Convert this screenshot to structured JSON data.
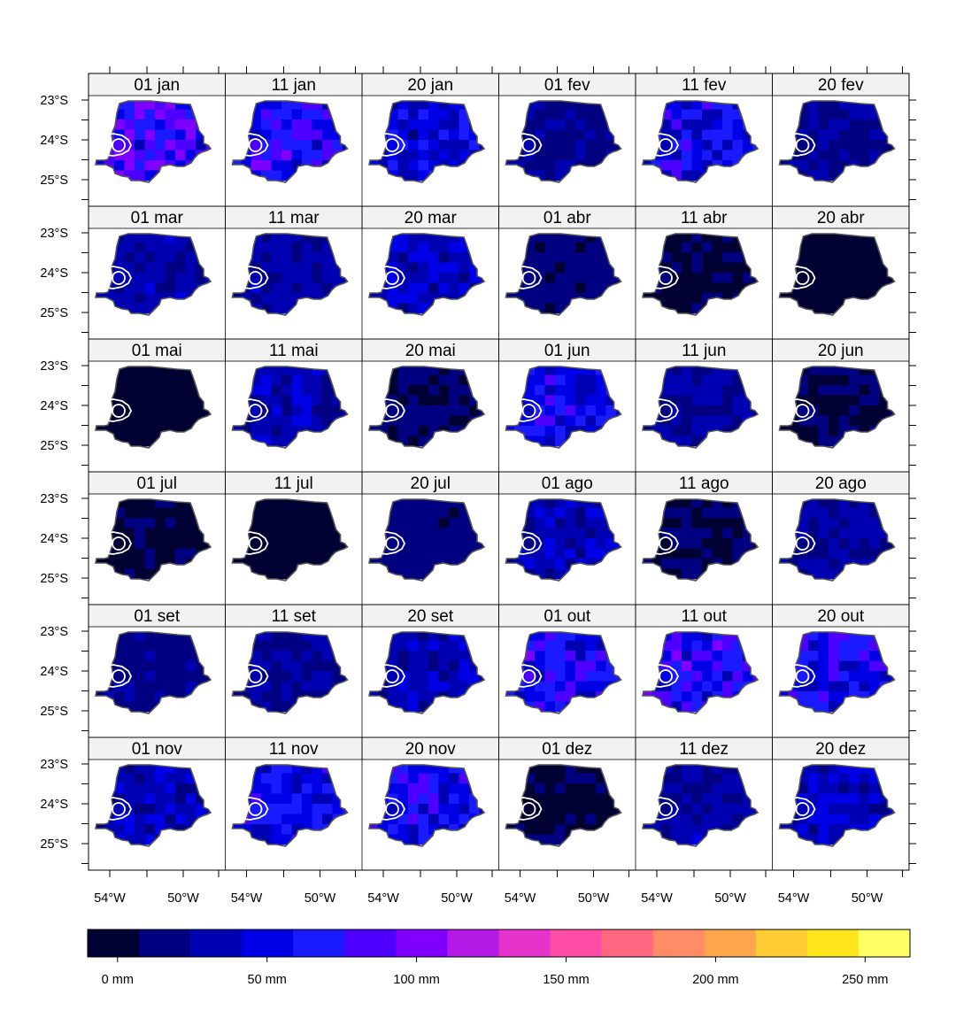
{
  "chart_data": {
    "type": "heatmap",
    "panel_labels": [
      [
        "01 jan",
        "11 jan",
        "20 jan",
        "01 fev",
        "11 fev",
        "20 fev"
      ],
      [
        "01 mar",
        "11 mar",
        "20 mar",
        "01 abr",
        "11 abr",
        "20 abr"
      ],
      [
        "01 mai",
        "11 mai",
        "20 mai",
        "01 jun",
        "11 jun",
        "20 jun"
      ],
      [
        "01 jul",
        "11 jul",
        "20 jul",
        "01 ago",
        "11 ago",
        "20 ago"
      ],
      [
        "01 set",
        "11 set",
        "20 set",
        "01 out",
        "11 out",
        "20 out"
      ],
      [
        "01 nov",
        "11 nov",
        "20 nov",
        "01 dez",
        "11 dez",
        "20 dez"
      ]
    ],
    "y_ticks": [
      "23°S",
      "24°S",
      "25°S"
    ],
    "x_ticks": [
      "54°W",
      "50°W"
    ],
    "colorbar": {
      "range": [
        -10,
        265
      ],
      "step": 25,
      "tick_values": [
        0,
        50,
        100,
        150,
        200,
        250
      ],
      "tick_labels": [
        "0 mm",
        "50 mm",
        "100 mm",
        "150 mm",
        "200 mm",
        "250 mm"
      ],
      "colors": [
        "#000033",
        "#000080",
        "#0000b3",
        "#0000e6",
        "#1a1aff",
        "#4d00ff",
        "#8000ff",
        "#b31ae6",
        "#e633cc",
        "#ff4da6",
        "#ff6680",
        "#ff8c66",
        "#ffa64d",
        "#ffcc33",
        "#ffe61a",
        "#ffff66"
      ]
    },
    "panel_mean_mm": [
      [
        110,
        95,
        70,
        35,
        85,
        40
      ],
      [
        50,
        45,
        60,
        22,
        12,
        2
      ],
      [
        8,
        50,
        20,
        80,
        45,
        15
      ],
      [
        12,
        5,
        25,
        55,
        15,
        40
      ],
      [
        30,
        40,
        55,
        95,
        95,
        90
      ],
      [
        55,
        80,
        90,
        12,
        45,
        60
      ]
    ]
  }
}
